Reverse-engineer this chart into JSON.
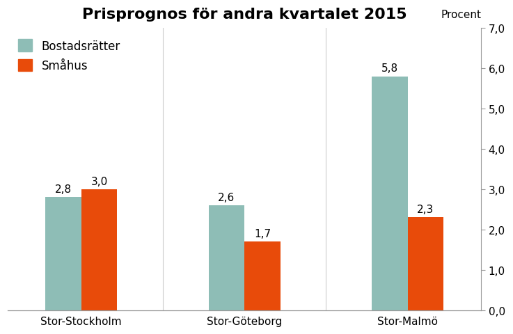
{
  "title": "Prisprognos för andra kvartalet 2015",
  "categories": [
    "Stor-Stockholm",
    "Stor-Göteborg",
    "Stor-Malmö"
  ],
  "series": [
    {
      "name": "Bostadsrätter",
      "values": [
        2.8,
        2.6,
        5.8
      ],
      "color": "#8ebdb6"
    },
    {
      "name": "Småhus",
      "values": [
        3.0,
        1.7,
        2.3
      ],
      "color": "#e84b0a"
    }
  ],
  "ylim": [
    0.0,
    7.0
  ],
  "yticks": [
    0.0,
    1.0,
    2.0,
    3.0,
    4.0,
    5.0,
    6.0,
    7.0
  ],
  "ytick_labels": [
    "0,0",
    "1,0",
    "2,0",
    "3,0",
    "4,0",
    "5,0",
    "6,0",
    "7,0"
  ],
  "ylabel_right": "Procent",
  "bar_width": 0.22,
  "background_color": "#ffffff",
  "title_fontsize": 16,
  "label_fontsize": 11,
  "tick_fontsize": 11,
  "annotation_fontsize": 11,
  "legend_fontsize": 12,
  "sep_line_color": "#cccccc",
  "spine_color": "#999999"
}
